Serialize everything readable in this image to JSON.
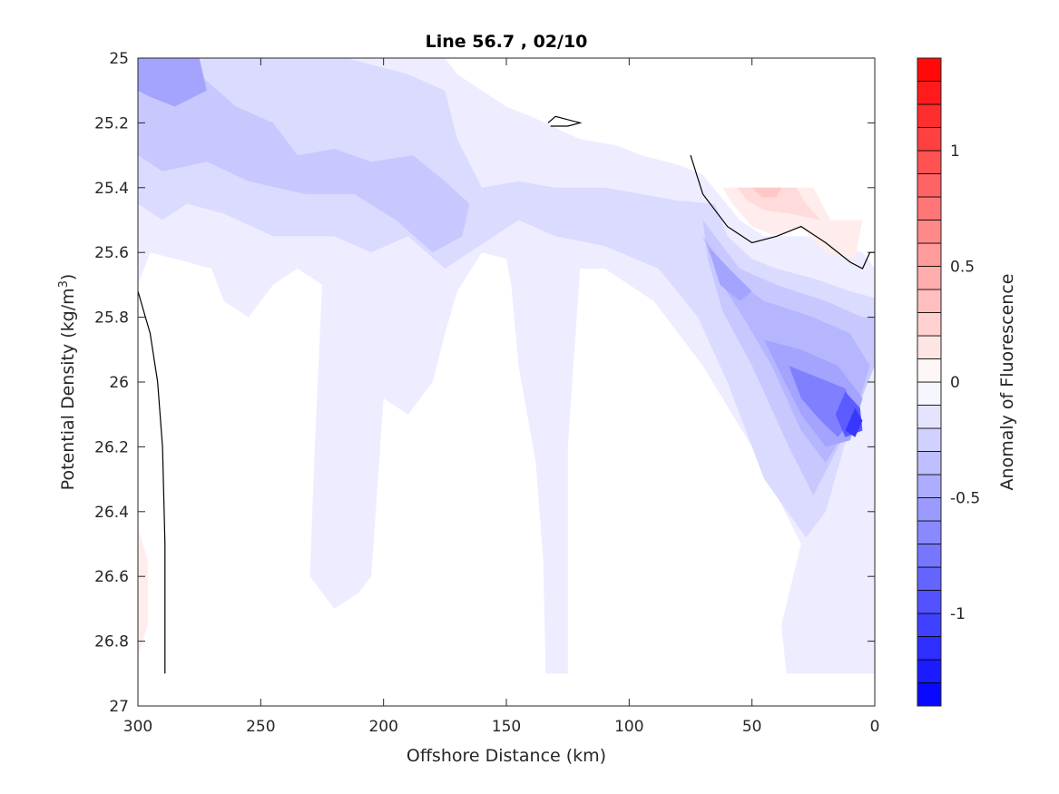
{
  "chart_data": {
    "type": "filled-contour",
    "title": "Line 56.7 , 02/10",
    "xlabel": "Offshore Distance (km)",
    "ylabel_main": "Potential Density (kg/m",
    "ylabel_sup": "3",
    "ylabel_tail": ")",
    "xlim": [
      300,
      0
    ],
    "ylim": [
      25,
      27
    ],
    "y_reversed": true,
    "x_ticks": [
      300,
      250,
      200,
      150,
      100,
      50,
      0
    ],
    "x_tick_labels": [
      "300",
      "250",
      "200",
      "150",
      "100",
      "50",
      "0"
    ],
    "y_ticks": [
      25,
      25.2,
      25.4,
      25.6,
      25.8,
      26,
      26.2,
      26.4,
      26.6,
      26.8,
      27
    ],
    "y_tick_labels": [
      "25",
      "25.2",
      "25.4",
      "25.6",
      "25.8",
      "26",
      "26.2",
      "26.4",
      "26.6",
      "26.8",
      "27"
    ],
    "colorbar": {
      "label": "Anomaly of Fluorescence",
      "clim": [
        -1.4,
        1.4
      ],
      "levels": 28,
      "ticks": [
        -1,
        -0.5,
        0,
        0.5,
        1
      ],
      "tick_labels": [
        "-1",
        "-0.5",
        "0",
        "0.5",
        "1"
      ],
      "colormap": "blue-white-red",
      "color_min": "#0000ff",
      "color_max": "#ff0000"
    },
    "series": [
      {
        "level": -0.1,
        "points": [
          [
            300,
            25
          ],
          [
            230,
            25
          ],
          [
            175,
            25
          ],
          [
            170,
            25.05
          ],
          [
            160,
            25.1
          ],
          [
            150,
            25.15
          ],
          [
            140,
            25.18
          ],
          [
            120,
            25.25
          ],
          [
            105,
            25.27
          ],
          [
            95,
            25.3
          ],
          [
            80,
            25.33
          ],
          [
            70,
            25.36
          ],
          [
            55,
            25.5
          ],
          [
            45,
            25.55
          ],
          [
            25,
            25.55
          ],
          [
            5,
            25.6
          ],
          [
            0,
            25.65
          ],
          [
            0,
            26.9
          ],
          [
            36,
            26.9
          ],
          [
            38,
            26.75
          ],
          [
            30,
            26.5
          ],
          [
            50,
            26.2
          ],
          [
            70,
            25.95
          ],
          [
            90,
            25.75
          ],
          [
            110,
            25.65
          ],
          [
            120,
            25.65
          ],
          [
            125,
            26.2
          ],
          [
            125,
            26.9
          ],
          [
            134,
            26.9
          ],
          [
            135,
            26.55
          ],
          [
            138,
            26.25
          ],
          [
            145,
            25.95
          ],
          [
            148,
            25.7
          ],
          [
            150,
            25.62
          ],
          [
            160,
            25.6
          ],
          [
            170,
            25.72
          ],
          [
            175,
            25.85
          ],
          [
            180,
            26.0
          ],
          [
            190,
            26.1
          ],
          [
            200,
            26.05
          ],
          [
            205,
            26.6
          ],
          [
            210,
            26.65
          ],
          [
            220,
            26.7
          ],
          [
            230,
            26.6
          ],
          [
            228,
            26.2
          ],
          [
            225,
            25.7
          ],
          [
            235,
            25.65
          ],
          [
            245,
            25.7
          ],
          [
            255,
            25.8
          ],
          [
            265,
            25.75
          ],
          [
            270,
            25.65
          ],
          [
            285,
            25.62
          ],
          [
            295,
            25.6
          ],
          [
            300,
            25.7
          ]
        ]
      },
      {
        "level": -0.2,
        "points": [
          [
            300,
            25
          ],
          [
            215,
            25
          ],
          [
            190,
            25.05
          ],
          [
            175,
            25.1
          ],
          [
            170,
            25.25
          ],
          [
            160,
            25.4
          ],
          [
            145,
            25.38
          ],
          [
            130,
            25.4
          ],
          [
            110,
            25.4
          ],
          [
            95,
            25.42
          ],
          [
            80,
            25.44
          ],
          [
            65,
            25.45
          ],
          [
            60,
            25.55
          ],
          [
            50,
            25.62
          ],
          [
            40,
            25.65
          ],
          [
            25,
            25.68
          ],
          [
            10,
            25.72
          ],
          [
            0,
            25.74
          ],
          [
            0,
            25.85
          ],
          [
            5,
            26.0
          ],
          [
            20,
            26.4
          ],
          [
            28,
            26.48
          ],
          [
            45,
            26.3
          ],
          [
            60,
            26.0
          ],
          [
            72,
            25.8
          ],
          [
            88,
            25.65
          ],
          [
            110,
            25.58
          ],
          [
            130,
            25.55
          ],
          [
            145,
            25.5
          ],
          [
            155,
            25.55
          ],
          [
            175,
            25.65
          ],
          [
            190,
            25.55
          ],
          [
            205,
            25.6
          ],
          [
            220,
            25.55
          ],
          [
            245,
            25.55
          ],
          [
            265,
            25.48
          ],
          [
            280,
            25.45
          ],
          [
            290,
            25.5
          ],
          [
            300,
            25.45
          ]
        ]
      },
      {
        "level": -0.3,
        "points": [
          [
            300,
            25.05
          ],
          [
            275,
            25.05
          ],
          [
            260,
            25.15
          ],
          [
            245,
            25.2
          ],
          [
            235,
            25.3
          ],
          [
            220,
            25.28
          ],
          [
            205,
            25.32
          ],
          [
            188,
            25.3
          ],
          [
            175,
            25.38
          ],
          [
            165,
            25.45
          ],
          [
            168,
            25.55
          ],
          [
            180,
            25.6
          ],
          [
            195,
            25.5
          ],
          [
            212,
            25.42
          ],
          [
            232,
            25.42
          ],
          [
            255,
            25.38
          ],
          [
            272,
            25.32
          ],
          [
            290,
            25.35
          ],
          [
            300,
            25.3
          ]
        ]
      },
      {
        "level": -0.3,
        "points": [
          [
            70,
            25.5
          ],
          [
            55,
            25.65
          ],
          [
            40,
            25.7
          ],
          [
            20,
            25.75
          ],
          [
            5,
            25.8
          ],
          [
            0,
            25.8
          ],
          [
            0,
            25.95
          ],
          [
            8,
            26.1
          ],
          [
            25,
            26.35
          ],
          [
            35,
            26.2
          ],
          [
            50,
            25.95
          ],
          [
            62,
            25.78
          ],
          [
            68,
            25.62
          ]
        ]
      },
      {
        "level": -0.4,
        "points": [
          [
            70,
            25.55
          ],
          [
            58,
            25.68
          ],
          [
            45,
            25.75
          ],
          [
            25,
            25.8
          ],
          [
            10,
            25.85
          ],
          [
            2,
            25.95
          ],
          [
            8,
            26.1
          ],
          [
            20,
            26.25
          ],
          [
            30,
            26.15
          ],
          [
            42,
            25.95
          ],
          [
            52,
            25.82
          ],
          [
            62,
            25.7
          ]
        ]
      },
      {
        "level": -0.5,
        "points": [
          [
            300,
            25
          ],
          [
            275,
            25
          ],
          [
            272,
            25.1
          ],
          [
            285,
            25.15
          ],
          [
            295,
            25.12
          ],
          [
            300,
            25.1
          ]
        ]
      },
      {
        "level": -0.5,
        "points": [
          [
            68,
            25.58
          ],
          [
            58,
            25.66
          ],
          [
            50,
            25.72
          ],
          [
            55,
            25.75
          ],
          [
            63,
            25.7
          ]
        ]
      },
      {
        "level": -0.5,
        "points": [
          [
            45,
            25.87
          ],
          [
            30,
            25.9
          ],
          [
            15,
            25.95
          ],
          [
            5,
            26.05
          ],
          [
            10,
            26.18
          ],
          [
            20,
            26.2
          ],
          [
            30,
            26.1
          ],
          [
            38,
            25.98
          ]
        ]
      },
      {
        "level": -0.7,
        "points": [
          [
            35,
            25.95
          ],
          [
            25,
            25.98
          ],
          [
            12,
            26.02
          ],
          [
            8,
            26.1
          ],
          [
            15,
            26.17
          ],
          [
            22,
            26.12
          ],
          [
            30,
            26.05
          ]
        ]
      },
      {
        "level": -0.9,
        "points": [
          [
            12,
            26.03
          ],
          [
            6,
            26.08
          ],
          [
            5,
            26.15
          ],
          [
            12,
            26.17
          ],
          [
            16,
            26.1
          ]
        ]
      },
      {
        "level": -1.1,
        "points": [
          [
            8,
            26.08
          ],
          [
            5,
            26.12
          ],
          [
            8,
            26.17
          ],
          [
            12,
            26.15
          ]
        ]
      },
      {
        "level": 0.1,
        "points": [
          [
            62,
            25.4
          ],
          [
            25,
            25.4
          ],
          [
            18,
            25.5
          ],
          [
            5,
            25.5
          ],
          [
            8,
            25.62
          ],
          [
            20,
            25.6
          ],
          [
            30,
            25.52
          ],
          [
            40,
            25.55
          ],
          [
            50,
            25.52
          ],
          [
            58,
            25.45
          ]
        ]
      },
      {
        "level": 0.2,
        "points": [
          [
            56,
            25.4
          ],
          [
            32,
            25.4
          ],
          [
            28,
            25.45
          ],
          [
            22,
            25.5
          ],
          [
            35,
            25.48
          ],
          [
            45,
            25.47
          ],
          [
            52,
            25.44
          ]
        ]
      },
      {
        "level": 0.3,
        "points": [
          [
            50,
            25.4
          ],
          [
            38,
            25.4
          ],
          [
            40,
            25.43
          ],
          [
            46,
            25.43
          ]
        ]
      },
      {
        "level": 0.1,
        "points": [
          [
            300,
            26.45
          ],
          [
            296,
            26.55
          ],
          [
            296,
            26.75
          ],
          [
            300,
            26.85
          ]
        ]
      }
    ],
    "zero_contour_lines": [
      [
        [
          300,
          25.72
        ],
        [
          295,
          25.85
        ],
        [
          292,
          26.0
        ],
        [
          290,
          26.2
        ],
        [
          289,
          26.5
        ],
        [
          289,
          26.9
        ]
      ],
      [
        [
          75,
          25.3
        ],
        [
          70,
          25.42
        ],
        [
          60,
          25.52
        ],
        [
          50,
          25.57
        ],
        [
          40,
          25.55
        ],
        [
          30,
          25.52
        ],
        [
          20,
          25.57
        ],
        [
          10,
          25.63
        ],
        [
          5,
          25.65
        ],
        [
          2,
          25.6
        ],
        [
          0,
          25.6
        ]
      ],
      [
        [
          133,
          25.2
        ],
        [
          130,
          25.18
        ],
        [
          120,
          25.2
        ],
        [
          125,
          25.21
        ],
        [
          132,
          25.21
        ]
      ]
    ]
  }
}
